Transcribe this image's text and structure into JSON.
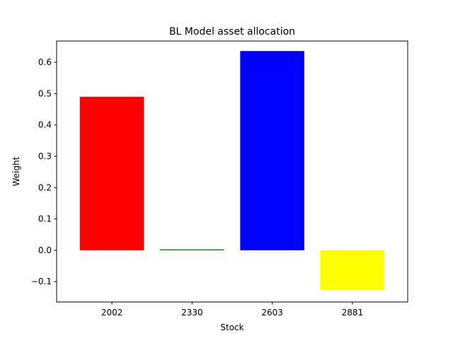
{
  "chart_data": {
    "type": "bar",
    "title": "BL Model asset allocation",
    "xlabel": "Stock",
    "ylabel": "Weight",
    "categories": [
      "2002",
      "2330",
      "2603",
      "2881"
    ],
    "values": [
      0.49,
      0.003,
      0.636,
      -0.127
    ],
    "colors": [
      "#ff0000",
      "#008000",
      "#0000ff",
      "#ffff00"
    ],
    "ylim": [
      -0.165,
      0.668
    ],
    "yticks": [
      -0.1,
      0.0,
      0.1,
      0.2,
      0.3,
      0.4,
      0.5,
      0.6
    ],
    "ytick_labels": [
      "−0.1",
      "0.0",
      "0.1",
      "0.2",
      "0.3",
      "0.4",
      "0.5",
      "0.6"
    ],
    "grid": false,
    "legend": "none"
  }
}
